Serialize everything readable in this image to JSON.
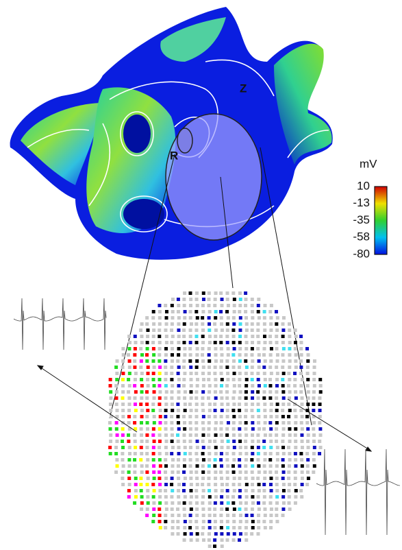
{
  "labels": {
    "z": "Z",
    "r": "R"
  },
  "colorbar": {
    "unit": "mV",
    "ticks": [
      10,
      -13,
      -35,
      -58,
      -80
    ]
  }
}
